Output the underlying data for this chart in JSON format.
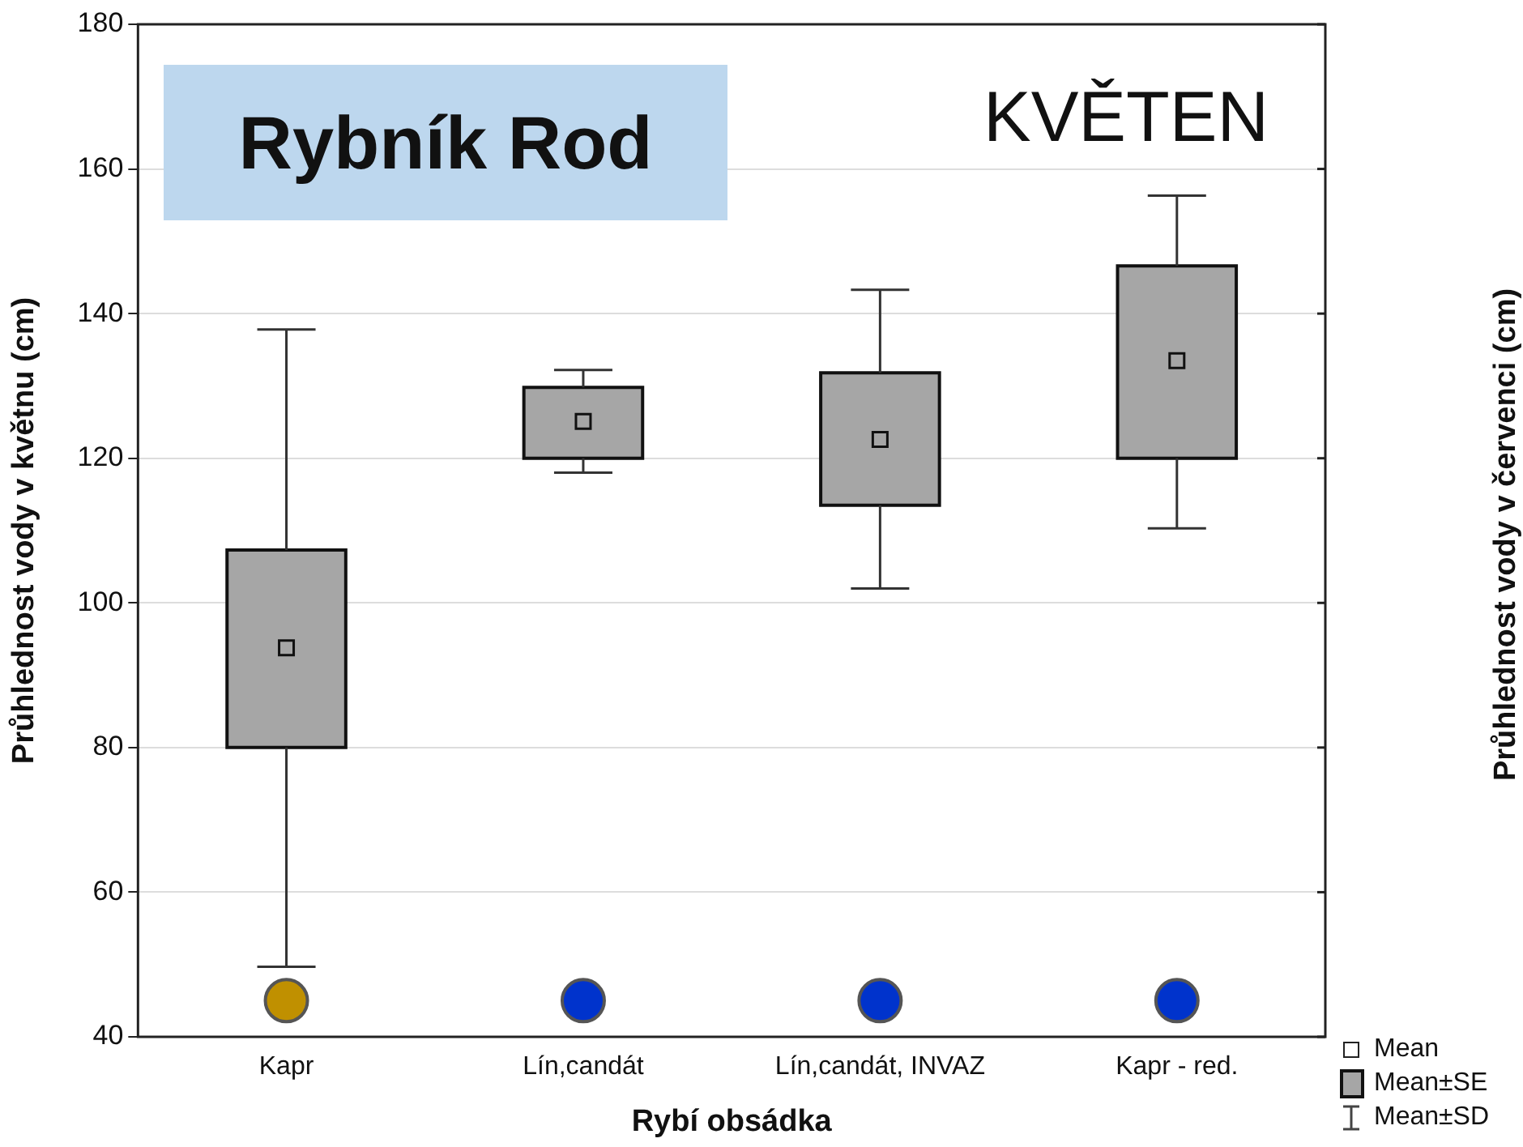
{
  "chart_data": {
    "type": "box",
    "title": "Rybník Rod",
    "xlabel": "Rybí obsádka",
    "ylabel": "Průhlednost vody v květnu (cm)",
    "annotations": [
      "KVĚTEN",
      "Mean",
      "Mean±SE",
      "Mean±SD",
      "Průhlednost vody v červenci (cm)"
    ],
    "categories": [
      "Kapr",
      "Lín,candát",
      "Lín,candát, INVAZ",
      "Kapr - red."
    ],
    "color": "#a6a6a6",
    "boxes": [
      {
        "low": 49.7,
        "q1": 80,
        "median": 93.8,
        "q3": 107.3,
        "high": 137.8
      },
      {
        "low": 118,
        "q1": 120,
        "median": 125.1,
        "q3": 129.8,
        "high": 132.2
      },
      {
        "low": 102,
        "q1": 113.5,
        "median": 122.6,
        "q3": 131.8,
        "high": 143.3
      },
      {
        "low": 110.3,
        "q1": 120,
        "median": 133.5,
        "q3": 146.6,
        "high": 156.3
      }
    ],
    "series": [
      {
        "type": "scatter",
        "marker": "circle",
        "x": [
          "Kapr",
          "Lín,candát",
          "Lín,candát, INVAZ",
          "Kapr - red."
        ],
        "values": [
          45,
          45,
          45,
          45
        ],
        "colors": [
          "#c09000",
          "#0033cc",
          "#0033cc",
          "#0033cc"
        ]
      }
    ],
    "ylim": [
      40,
      180
    ],
    "yticks": [
      40,
      60,
      80,
      100,
      120,
      140,
      160,
      180
    ],
    "grid": "y"
  }
}
